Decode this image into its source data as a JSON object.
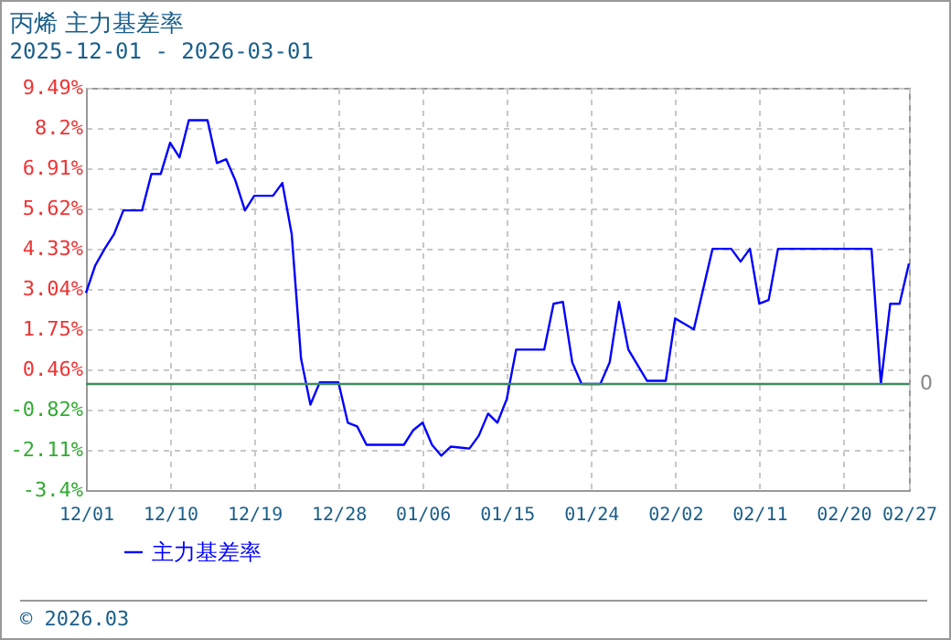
{
  "chart_data": {
    "type": "line",
    "title": "丙烯  主力基差率",
    "subtitle": "2025-12-01 - 2026-03-01",
    "x": [
      "2025-12-01",
      "2025-12-02",
      "2025-12-03",
      "2025-12-04",
      "2025-12-05",
      "2025-12-07",
      "2025-12-08",
      "2025-12-09",
      "2025-12-10",
      "2025-12-11",
      "2025-12-12",
      "2025-12-14",
      "2025-12-15",
      "2025-12-16",
      "2025-12-17",
      "2025-12-18",
      "2025-12-19",
      "2025-12-21",
      "2025-12-22",
      "2025-12-23",
      "2025-12-24",
      "2025-12-25",
      "2025-12-26",
      "2025-12-28",
      "2025-12-29",
      "2025-12-30",
      "2025-12-31",
      "2026-01-04",
      "2026-01-05",
      "2026-01-06",
      "2026-01-07",
      "2026-01-08",
      "2026-01-09",
      "2026-01-11",
      "2026-01-12",
      "2026-01-13",
      "2026-01-14",
      "2026-01-15",
      "2026-01-16",
      "2026-01-19",
      "2026-01-20",
      "2026-01-21",
      "2026-01-22",
      "2026-01-23",
      "2026-01-25",
      "2026-01-26",
      "2026-01-27",
      "2026-01-28",
      "2026-01-30",
      "2026-02-01",
      "2026-02-02",
      "2026-02-04",
      "2026-02-06",
      "2026-02-08",
      "2026-02-09",
      "2026-02-10",
      "2026-02-11",
      "2026-02-12",
      "2026-02-13",
      "2026-02-23",
      "2026-02-24",
      "2026-02-25",
      "2026-02-26",
      "2026-02-27"
    ],
    "series": [
      {
        "name": "主力基差率",
        "color": "#0000ff",
        "values": [
          2.92,
          3.8,
          4.33,
          4.8,
          5.56,
          5.56,
          6.73,
          6.73,
          7.73,
          7.26,
          8.45,
          8.45,
          7.08,
          7.2,
          6.5,
          5.56,
          6.03,
          6.03,
          6.44,
          4.8,
          0.81,
          -0.66,
          0.05,
          0.05,
          -1.24,
          -1.36,
          -1.95,
          -1.95,
          -1.48,
          -1.24,
          -1.95,
          -2.3,
          -2.01,
          -2.07,
          -1.66,
          -0.95,
          -1.24,
          -0.48,
          1.1,
          1.1,
          2.57,
          2.63,
          0.69,
          0,
          0,
          0.69,
          2.63,
          1.1,
          0.1,
          0.1,
          2.1,
          1.75,
          4.33,
          4.33,
          3.92,
          4.33,
          2.57,
          2.69,
          4.33,
          4.33,
          0,
          2.57,
          2.57,
          3.86
        ]
      }
    ],
    "xlim": [
      "2025-12-01",
      "2026-02-27"
    ],
    "xticks": [
      {
        "value": "2025-12-01",
        "label": "12/01"
      },
      {
        "value": "2025-12-10",
        "label": "12/10"
      },
      {
        "value": "2025-12-19",
        "label": "12/19"
      },
      {
        "value": "2025-12-28",
        "label": "12/28"
      },
      {
        "value": "2026-01-06",
        "label": "01/06"
      },
      {
        "value": "2026-01-15",
        "label": "01/15"
      },
      {
        "value": "2026-01-24",
        "label": "01/24"
      },
      {
        "value": "2026-02-02",
        "label": "02/02"
      },
      {
        "value": "2026-02-11",
        "label": "02/11"
      },
      {
        "value": "2026-02-20",
        "label": "02/20"
      },
      {
        "value": "2026-02-27",
        "label": "02/27"
      }
    ],
    "ylim": [
      -3.4,
      9.49
    ],
    "yticks": [
      {
        "value": -3.4,
        "label": "-3.4%"
      },
      {
        "value": -2.11,
        "label": "-2.11%"
      },
      {
        "value": -0.82,
        "label": "-0.82%"
      },
      {
        "value": 0.46,
        "label": "0.46%"
      },
      {
        "value": 1.75,
        "label": "1.75%"
      },
      {
        "value": 3.04,
        "label": "3.04%"
      },
      {
        "value": 4.33,
        "label": "4.33%"
      },
      {
        "value": 5.62,
        "label": "5.62%"
      },
      {
        "value": 6.91,
        "label": "6.91%"
      },
      {
        "value": 8.2,
        "label": "8.2%"
      },
      {
        "value": 9.49,
        "label": "9.49%"
      }
    ],
    "ref_lines": [
      {
        "axis": "y",
        "value": 0,
        "label": "0",
        "color": "#3c8c5c"
      }
    ],
    "grid": true,
    "legend": "bottom left",
    "marker": "none",
    "line_style": "solid",
    "annotations": [
      "© 2026.03"
    ]
  }
}
